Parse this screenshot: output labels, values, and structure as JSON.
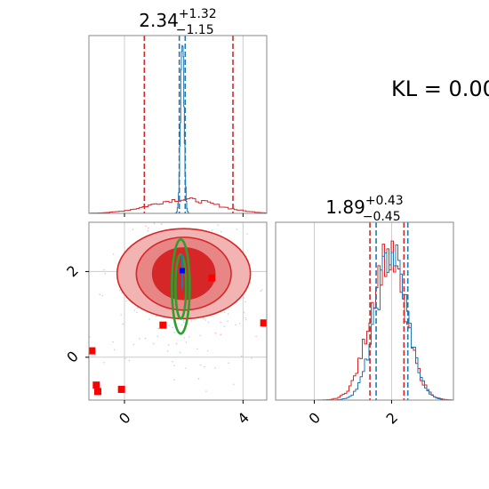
{
  "annotation": {
    "kl_text": "KL = 0.00"
  },
  "chart_data": [
    {
      "panel": "marginal-x",
      "type": "histogram",
      "title": {
        "value": "2.34",
        "sup": "+1.32",
        "sub": "−1.15"
      },
      "xlim": [
        -1.2,
        4.8
      ],
      "xticks": [
        0,
        4
      ],
      "grid": true,
      "series": [
        {
          "color": "#1f77b4",
          "center": 1.95,
          "sigma": 0.06,
          "peak": 1.0
        },
        {
          "color": "#d62728",
          "center": 2.0,
          "sigma": 1.1,
          "peak": 0.08
        }
      ],
      "quantile_lines": [
        {
          "color": "#d62728",
          "values": [
            0.67,
            3.66
          ]
        },
        {
          "color": "#1f77b4",
          "values": [
            1.85,
            2.05
          ]
        }
      ]
    },
    {
      "panel": "joint",
      "type": "scatter",
      "xlim": [
        -1.2,
        4.8
      ],
      "ylim": [
        -1.0,
        3.15
      ],
      "xticks": [
        0,
        4
      ],
      "yticks": [
        0,
        2
      ],
      "grid": true,
      "ellipses": [
        {
          "fill": "#f2b3b3",
          "stroke": "#d62728",
          "cx": 2.0,
          "cy": 1.95,
          "rx": 2.25,
          "ry": 1.05
        },
        {
          "fill": "#e88585",
          "stroke": "#d62728",
          "cx": 2.0,
          "cy": 1.95,
          "rx": 1.6,
          "ry": 0.85
        },
        {
          "fill": "#d62728",
          "stroke": "#d62728",
          "cx": 2.0,
          "cy": 1.95,
          "rx": 1.05,
          "ry": 0.6
        },
        {
          "fill": "#2ca02c",
          "stroke": "#2ca02c",
          "cx": 1.9,
          "cy": 1.65,
          "rx": 0.3,
          "ry": 1.1,
          "outline": true
        },
        {
          "fill": "#2ca02c",
          "stroke": "#2ca02c",
          "cx": 1.9,
          "cy": 1.65,
          "rx": 0.18,
          "ry": 0.75,
          "outline": true
        }
      ],
      "red_points": [
        [
          -1.1,
          0.15
        ],
        [
          -0.95,
          -0.65
        ],
        [
          -0.9,
          -0.8
        ],
        [
          -0.1,
          -0.75
        ],
        [
          1.3,
          0.75
        ],
        [
          2.95,
          1.85
        ],
        [
          4.7,
          0.8
        ]
      ],
      "blue_point": [
        1.95,
        2.02
      ],
      "blue_line": {
        "x": 1.95,
        "y0": 1.6,
        "y1": 2.4
      }
    },
    {
      "panel": "marginal-y",
      "type": "histogram",
      "title": {
        "value": "1.89",
        "sup": "+0.43",
        "sub": "−0.45"
      },
      "xlim": [
        -1.0,
        3.6
      ],
      "xticks": [
        0,
        2
      ],
      "grid": true,
      "series": [
        {
          "color": "#d62728",
          "center": 1.9,
          "sigma": 0.45,
          "peak": 0.9
        },
        {
          "color": "#1f77b4",
          "center": 2.0,
          "sigma": 0.4,
          "peak": 0.92
        }
      ],
      "quantile_lines": [
        {
          "color": "#d62728",
          "values": [
            1.44,
            2.32
          ]
        },
        {
          "color": "#1f77b4",
          "values": [
            1.6,
            2.42
          ]
        }
      ]
    }
  ]
}
